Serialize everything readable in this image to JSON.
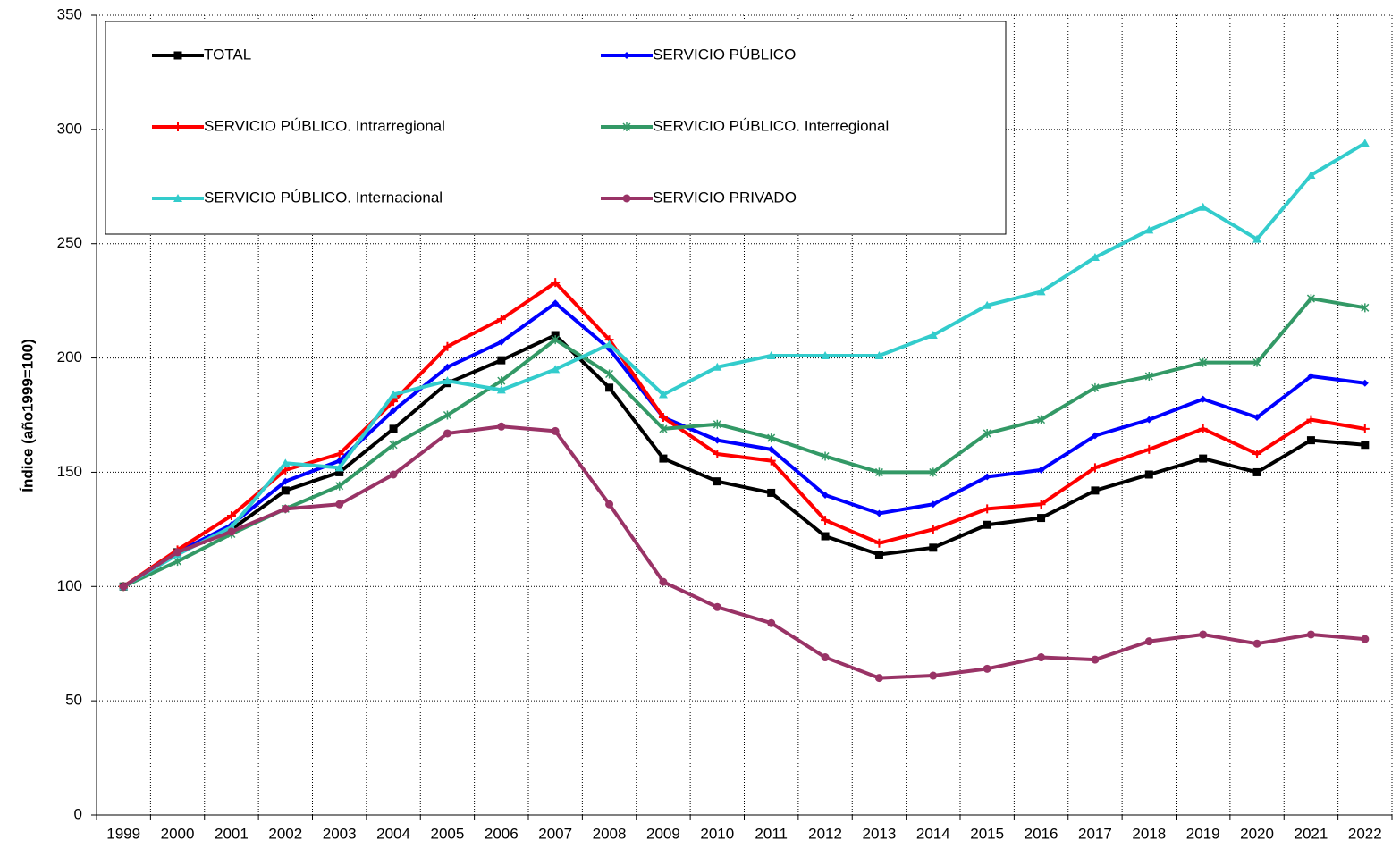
{
  "chart_data": {
    "type": "line",
    "y_label": "Índice (año1999=100)",
    "categories": [
      "1999",
      "2000",
      "2001",
      "2002",
      "2003",
      "2004",
      "2005",
      "2006",
      "2007",
      "2008",
      "2009",
      "2010",
      "2011",
      "2012",
      "2013",
      "2014",
      "2015",
      "2016",
      "2017",
      "2018",
      "2019",
      "2020",
      "2021",
      "2022"
    ],
    "ylim": [
      0,
      350
    ],
    "yticks": [
      0,
      50,
      100,
      150,
      200,
      250,
      300,
      350
    ],
    "grid": true,
    "series": [
      {
        "name": "TOTAL",
        "color": "#000000",
        "marker": "square",
        "values": [
          100,
          115,
          125,
          142,
          150,
          169,
          189,
          199,
          210,
          187,
          156,
          146,
          141,
          122,
          114,
          117,
          127,
          130,
          142,
          149,
          156,
          150,
          164,
          162
        ]
      },
      {
        "name": "SERVICIO PÚBLICO",
        "color": "#0000ff",
        "marker": "diamond",
        "values": [
          100,
          115,
          127,
          146,
          155,
          177,
          196,
          207,
          224,
          204,
          174,
          164,
          160,
          140,
          132,
          136,
          148,
          151,
          166,
          173,
          182,
          174,
          192,
          189
        ]
      },
      {
        "name": "SERVICIO PÚBLICO. Intrarregional",
        "color": "#ff0000",
        "marker": "plus",
        "values": [
          100,
          116,
          131,
          151,
          158,
          181,
          205,
          217,
          233,
          208,
          174,
          158,
          155,
          129,
          119,
          125,
          134,
          136,
          152,
          160,
          169,
          158,
          173,
          169
        ]
      },
      {
        "name": "SERVICIO PÚBLICO. Interregional",
        "color": "#339966",
        "marker": "cross",
        "values": [
          100,
          111,
          123,
          134,
          144,
          162,
          175,
          190,
          208,
          193,
          169,
          171,
          165,
          157,
          150,
          150,
          167,
          173,
          187,
          192,
          198,
          198,
          226,
          222
        ]
      },
      {
        "name": "SERVICIO PÚBLICO. Internacional",
        "color": "#33cccc",
        "marker": "triangle",
        "values": [
          100,
          114,
          126,
          154,
          152,
          184,
          190,
          186,
          195,
          206,
          184,
          196,
          201,
          201,
          201,
          210,
          223,
          229,
          244,
          256,
          266,
          252,
          280,
          294
        ]
      },
      {
        "name": "SERVICIO PRIVADO",
        "color": "#993366",
        "marker": "circle",
        "values": [
          100,
          115,
          124,
          134,
          136,
          149,
          167,
          170,
          168,
          136,
          102,
          91,
          84,
          69,
          60,
          61,
          64,
          69,
          68,
          76,
          79,
          75,
          79,
          77
        ]
      }
    ]
  }
}
